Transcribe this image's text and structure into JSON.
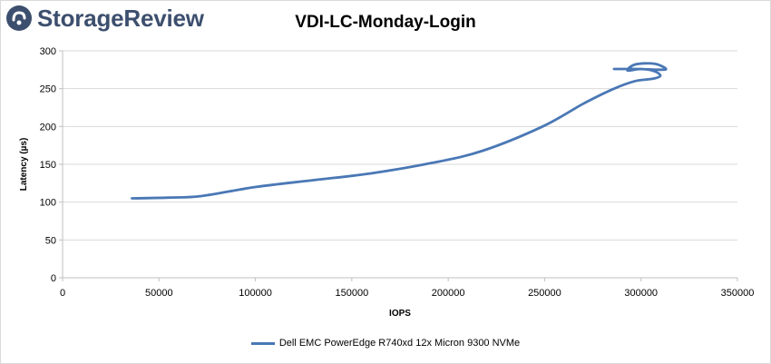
{
  "brand": {
    "name": "StorageReview",
    "icon": "storagereview-logo-icon",
    "color": "#3d4f6e"
  },
  "chart_data": {
    "type": "line",
    "title": "VDI-LC-Monday-Login",
    "xlabel": "IOPS",
    "ylabel": "Latency (µs)",
    "xlim": [
      0,
      350000
    ],
    "ylim": [
      0,
      300
    ],
    "xticks": [
      0,
      50000,
      100000,
      150000,
      200000,
      250000,
      300000,
      350000
    ],
    "yticks": [
      0,
      50,
      100,
      150,
      200,
      250,
      300
    ],
    "grid": true,
    "legend_position": "bottom",
    "series": [
      {
        "name": "Dell EMC PowerEdge R740xd 12x Micron 9300 NVMe",
        "color": "#4a78b5",
        "x": [
          36000,
          55000,
          72000,
          100000,
          130000,
          160000,
          192000,
          218000,
          249000,
          270000,
          286000,
          297000,
          306000,
          310000,
          307000,
          300000,
          293000,
          297000,
          307000,
          313000,
          308000,
          298000,
          286000
        ],
        "y": [
          105,
          106,
          108,
          120,
          129,
          138,
          152,
          168,
          200,
          230,
          250,
          260,
          263,
          267,
          273,
          276,
          274,
          282,
          283,
          276,
          275,
          276,
          276
        ]
      }
    ]
  }
}
